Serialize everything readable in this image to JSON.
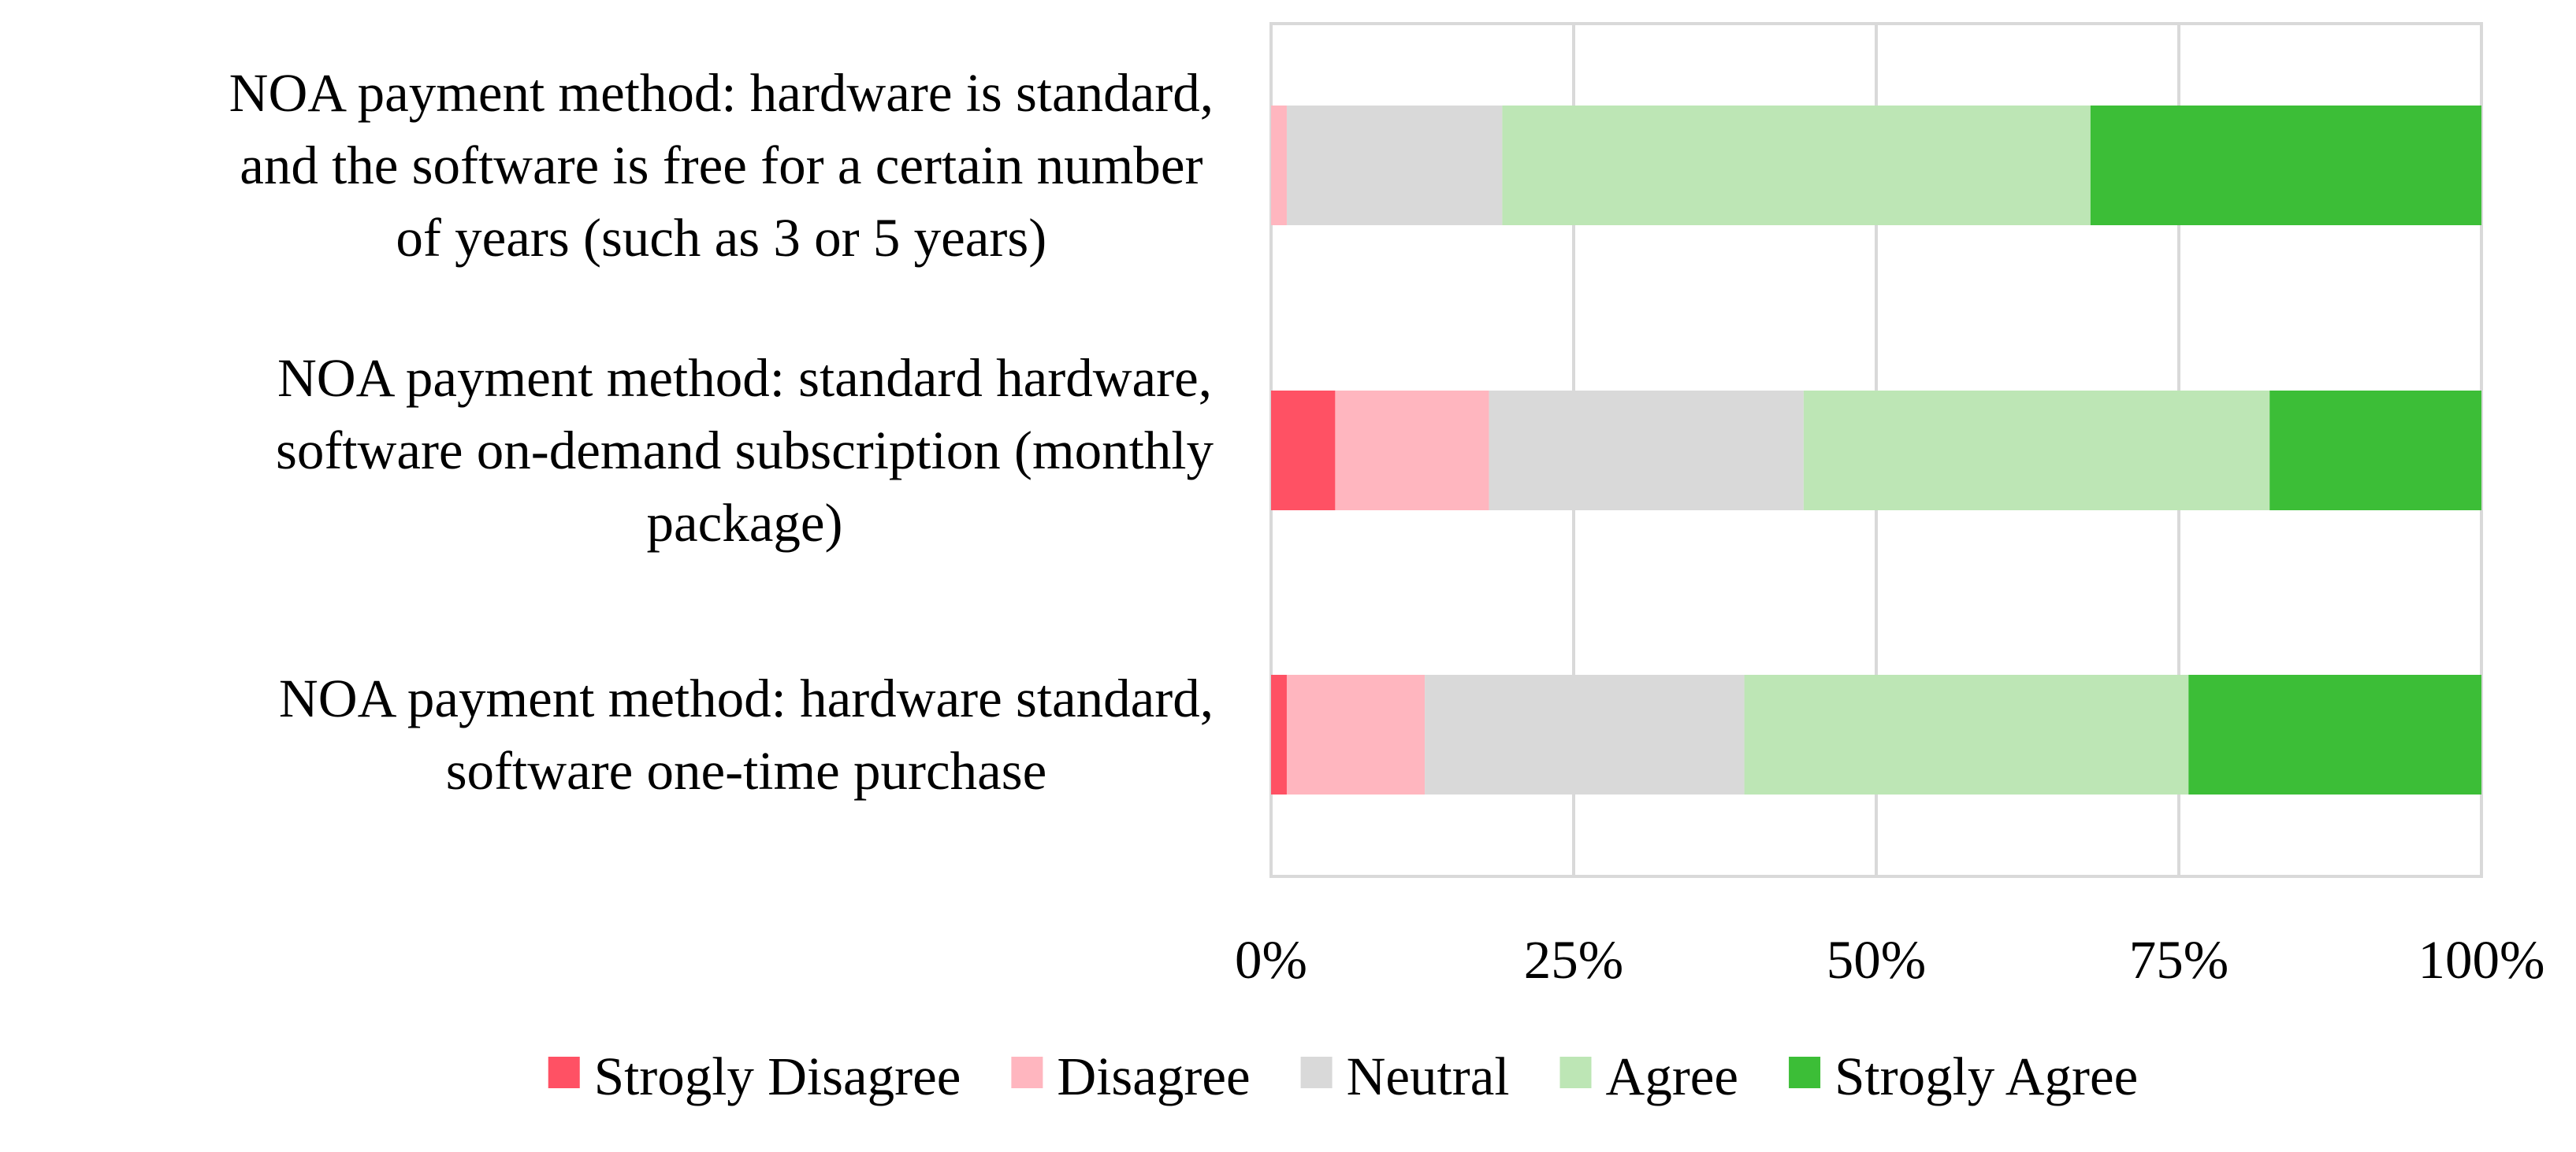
{
  "chart_data": {
    "type": "bar",
    "orientation": "horizontal",
    "stacked": "percent",
    "categories": [
      "NOA payment method: hardware is standard, and the software is free for a certain number of years (such as 3 or 5 years)",
      "NOA payment method: standard hardware, software on-demand subscription (monthly package)",
      "NOA payment method: hardware standard, software one-time purchase"
    ],
    "category_lines": [
      [
        "NOA payment method: hardware is standard,",
        "and the software is free for a certain number",
        "of years (such as 3 or 5 years)"
      ],
      [
        "NOA payment method: standard hardware,",
        "software on-demand subscription (monthly",
        "package)"
      ],
      [
        "NOA payment method: hardware standard,",
        "software one-time purchase"
      ]
    ],
    "series": [
      {
        "name": "Strogly Disagree",
        "color": "#ff5164",
        "values": [
          0,
          5.3,
          1.3
        ]
      },
      {
        "name": "Disagree",
        "color": "#ffb6bf",
        "values": [
          1.3,
          12.7,
          11.4
        ]
      },
      {
        "name": "Neutral",
        "color": "#d9d9d9",
        "values": [
          17.8,
          26.0,
          26.4
        ]
      },
      {
        "name": "Agree",
        "color": "#bde6b5",
        "values": [
          48.6,
          38.5,
          36.7
        ]
      },
      {
        "name": "Strogly Agree",
        "color": "#3cbe37",
        "values": [
          32.3,
          17.5,
          24.2
        ]
      }
    ],
    "x_ticks": [
      "0%",
      "25%",
      "50%",
      "75%",
      "100%"
    ],
    "xlim": [
      0,
      100
    ],
    "grid": true,
    "legend_position": "bottom",
    "gridline_color": "#d9d9d9"
  }
}
